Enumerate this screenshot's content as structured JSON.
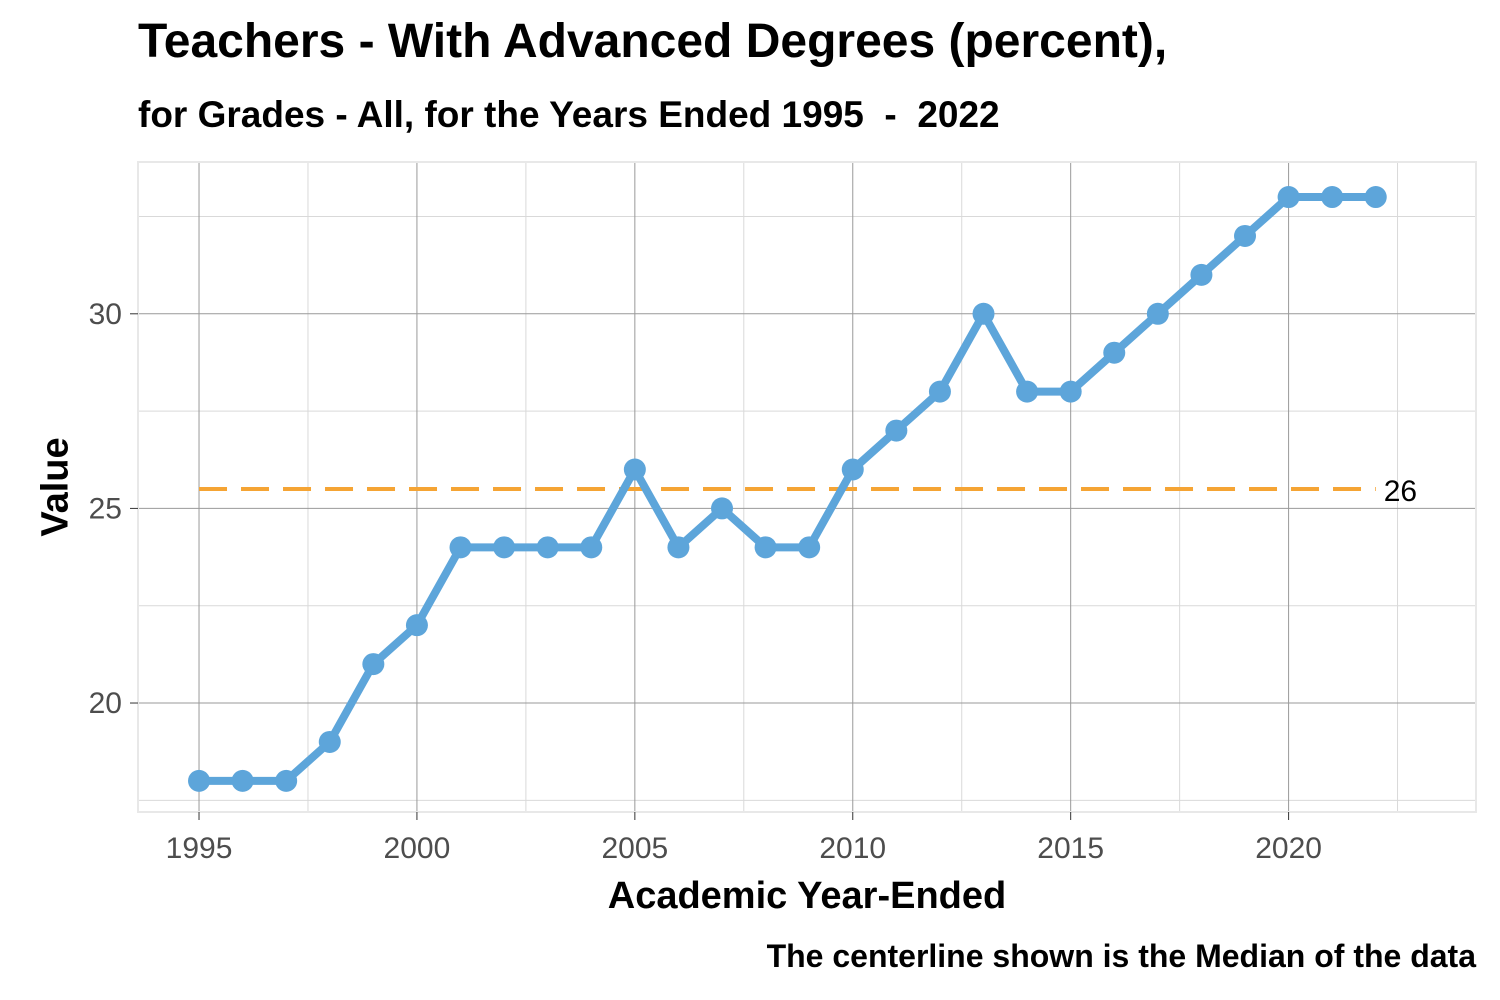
{
  "chart_data": {
    "type": "line",
    "title": "Teachers - With Advanced Degrees (percent),",
    "subtitle": "for Grades - All, for the Years Ended 1995  -  2022",
    "xlabel": "Academic Year-Ended",
    "ylabel": "Value",
    "caption": "The centerline shown is the Median of the data",
    "x": [
      1995,
      1996,
      1997,
      1998,
      1999,
      2000,
      2001,
      2002,
      2003,
      2004,
      2005,
      2006,
      2007,
      2008,
      2009,
      2010,
      2011,
      2012,
      2013,
      2014,
      2015,
      2016,
      2017,
      2018,
      2019,
      2020,
      2021,
      2022
    ],
    "series": [
      {
        "values": [
          18,
          18,
          18,
          19,
          21,
          22,
          24,
          24,
          24,
          24,
          26,
          24,
          25,
          24,
          24,
          26,
          27,
          28,
          30,
          28,
          28,
          29,
          30,
          31,
          32,
          33,
          33,
          33
        ]
      }
    ],
    "xlim": [
      1993.6,
      2024.3
    ],
    "ylim": [
      17.2,
      33.9
    ],
    "x_ticks": [
      1995,
      2000,
      2005,
      2010,
      2015,
      2020
    ],
    "y_ticks": [
      20,
      25,
      30
    ],
    "centerline": {
      "value": 25.5,
      "label": "26",
      "style": "dashed"
    },
    "grid": true,
    "legend": "none",
    "colors": {
      "line": "#5DA5DA",
      "centerline": "#F5A434",
      "grid_major": "#999999",
      "grid_minor": "#d9d9d9",
      "panel_border": "#e8e8e8"
    }
  }
}
